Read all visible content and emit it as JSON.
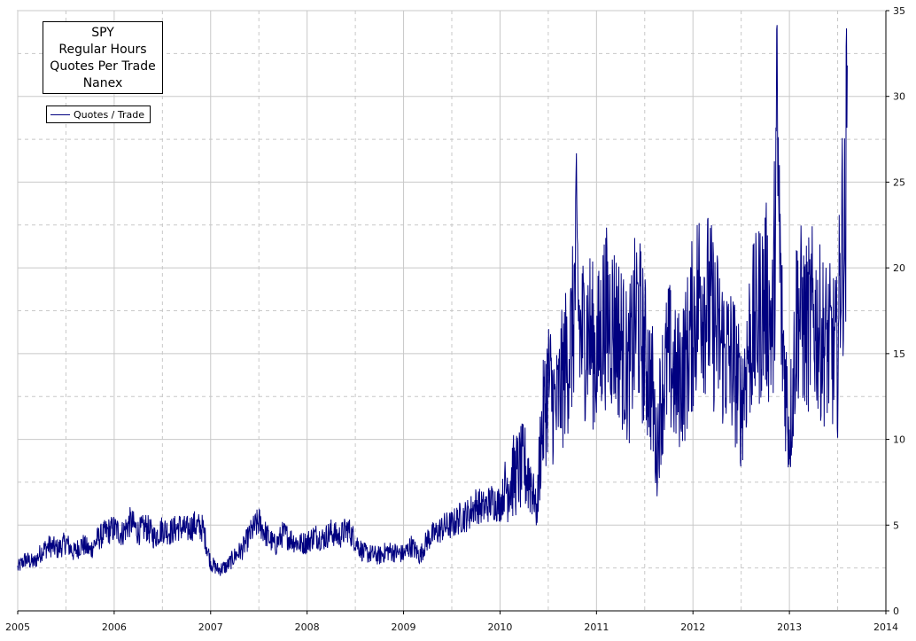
{
  "title_lines": [
    "SPY",
    "Regular Hours",
    "Quotes Per Trade",
    "Nanex"
  ],
  "legend": {
    "label": "Quotes / Trade",
    "color": "#000080"
  },
  "chart_data": {
    "type": "line",
    "title": "SPY Regular Hours Quotes Per Trade Nanex",
    "xlabel": "",
    "ylabel": "",
    "xlim": [
      2005,
      2014
    ],
    "ylim": [
      0,
      35
    ],
    "x_ticks": [
      "2005",
      "2006",
      "2007",
      "2008",
      "2009",
      "2010",
      "2011",
      "2012",
      "2013",
      "2014"
    ],
    "y_ticks": [
      "0",
      "5",
      "10",
      "15",
      "20",
      "25",
      "30",
      "35"
    ],
    "y_axis_side": "right",
    "grid": true,
    "legend_position": "top-left",
    "series": [
      {
        "name": "Quotes / Trade",
        "color": "#000080",
        "x": [
          2005.0,
          2005.08,
          2005.17,
          2005.25,
          2005.33,
          2005.42,
          2005.5,
          2005.58,
          2005.67,
          2005.75,
          2005.83,
          2005.92,
          2006.0,
          2006.08,
          2006.17,
          2006.25,
          2006.33,
          2006.42,
          2006.5,
          2006.58,
          2006.67,
          2006.75,
          2006.83,
          2006.92,
          2007.0,
          2007.08,
          2007.17,
          2007.25,
          2007.33,
          2007.42,
          2007.5,
          2007.58,
          2007.67,
          2007.75,
          2007.83,
          2007.92,
          2008.0,
          2008.08,
          2008.17,
          2008.25,
          2008.33,
          2008.42,
          2008.5,
          2008.58,
          2008.67,
          2008.75,
          2008.83,
          2008.92,
          2009.0,
          2009.08,
          2009.17,
          2009.25,
          2009.33,
          2009.42,
          2009.5,
          2009.58,
          2009.67,
          2009.75,
          2009.83,
          2009.92,
          2010.0,
          2010.08,
          2010.17,
          2010.25,
          2010.33,
          2010.38,
          2010.42,
          2010.5,
          2010.58,
          2010.67,
          2010.75,
          2010.79,
          2010.83,
          2010.92,
          2011.0,
          2011.08,
          2011.17,
          2011.25,
          2011.33,
          2011.42,
          2011.5,
          2011.58,
          2011.62,
          2011.67,
          2011.75,
          2011.83,
          2011.92,
          2012.0,
          2012.08,
          2012.17,
          2012.25,
          2012.33,
          2012.42,
          2012.5,
          2012.58,
          2012.67,
          2012.75,
          2012.83,
          2012.87,
          2012.92,
          2013.0,
          2013.04,
          2013.08,
          2013.17,
          2013.25,
          2013.33,
          2013.42,
          2013.5,
          2013.54,
          2013.58,
          2013.6
        ],
        "values": [
          2.5,
          3.0,
          2.8,
          3.5,
          3.8,
          3.6,
          4.0,
          3.4,
          3.9,
          3.5,
          4.2,
          4.6,
          4.8,
          4.5,
          5.2,
          4.6,
          4.9,
          4.3,
          4.8,
          4.6,
          4.9,
          4.7,
          5.0,
          4.8,
          2.8,
          2.4,
          2.6,
          3.2,
          3.6,
          4.6,
          5.2,
          4.4,
          3.8,
          4.5,
          4.2,
          3.9,
          4.0,
          4.4,
          4.2,
          4.6,
          4.3,
          4.8,
          4.1,
          3.4,
          3.3,
          3.2,
          3.5,
          3.4,
          3.3,
          3.8,
          3.2,
          4.2,
          4.5,
          4.9,
          5.0,
          5.4,
          5.6,
          6.2,
          6.0,
          6.4,
          6.2,
          7.5,
          8.0,
          8.4,
          7.6,
          5.6,
          9.8,
          13.5,
          11.6,
          14.2,
          16.0,
          20.5,
          15.8,
          16.5,
          14.6,
          17.2,
          16.8,
          15.8,
          13.8,
          17.5,
          15.0,
          12.8,
          9.2,
          12.6,
          14.8,
          13.2,
          14.4,
          16.8,
          19.0,
          17.6,
          16.2,
          15.0,
          14.4,
          12.0,
          15.6,
          17.0,
          18.4,
          16.2,
          27.8,
          16.6,
          10.4,
          13.6,
          17.8,
          16.4,
          17.2,
          16.0,
          15.4,
          14.8,
          22.0,
          21.2,
          31.8
        ]
      }
    ]
  }
}
